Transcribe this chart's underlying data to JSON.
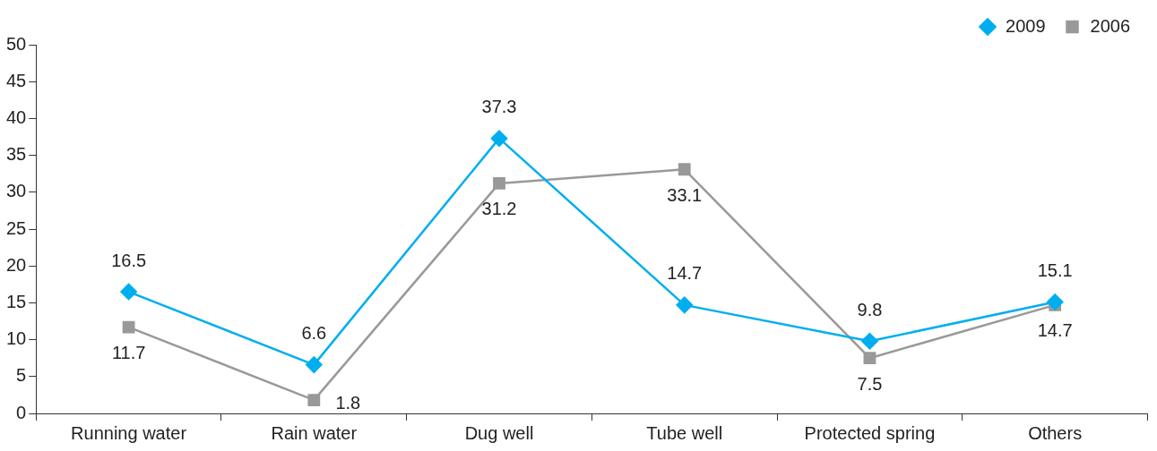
{
  "chart_data": {
    "type": "line",
    "categories": [
      "Running water",
      "Rain water",
      "Dug well",
      "Tube well",
      "Protected spring",
      "Others"
    ],
    "series": [
      {
        "name": "2009",
        "color": "#00aeef",
        "marker": "diamond",
        "values": [
          16.5,
          6.6,
          37.3,
          14.7,
          9.8,
          15.1
        ]
      },
      {
        "name": "2006",
        "color": "#999999",
        "marker": "square",
        "values": [
          11.7,
          1.8,
          31.2,
          33.1,
          7.5,
          14.7
        ]
      }
    ],
    "ylim": [
      0,
      50
    ],
    "yticks": [
      0,
      5,
      10,
      15,
      20,
      25,
      30,
      35,
      40,
      45,
      50
    ],
    "grid": false,
    "legend": "top right",
    "data_labels": true,
    "line_style": "solid"
  }
}
